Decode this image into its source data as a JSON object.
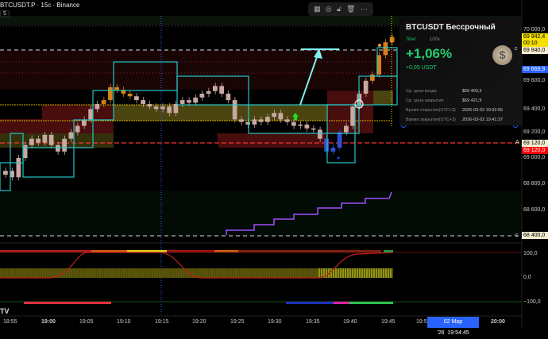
{
  "header": {
    "symbol_title": "BTCUSDT.P · 15с · Binance",
    "interval_badge": "5"
  },
  "toolbar": {
    "icons": [
      "layout-icon",
      "target-icon",
      "unlock-icon",
      "trash-icon",
      "more-icon"
    ]
  },
  "position_card": {
    "title": "BTCUSDT Бессрочный",
    "side": "Лонг",
    "leverage": "100x",
    "pnl_percent": "+1,06%",
    "pnl_usdt": "+0,05 USDT",
    "rows": [
      {
        "label": "Ср. цена входа",
        "value": "$69 400,3"
      },
      {
        "label": "Ср. цена закрытия",
        "value": "$69 421,9"
      },
      {
        "label": "Время открытия(UTC+3)",
        "value": "2026-03-02 19:32:55"
      },
      {
        "label": "Время закрытия(UTC+3)",
        "value": "2026-03-02 19:41:37"
      }
    ],
    "colors": {
      "profit": "#1fcf70"
    }
  },
  "price_axis": {
    "labels": [
      "70 000,0",
      "69 600,0",
      "69 400,0",
      "69 200,0",
      "69 000,0",
      "68 800,0",
      "68 600,0"
    ],
    "current_price": "69 942,4",
    "countdown": "00:10",
    "level_c_top": "69 840,0",
    "crosshair_price": "69 669,9",
    "level_a": "69 120,0",
    "level_a_red": "69 120,0",
    "level_c_bottom": "68 400,0",
    "line_marker_c": "c",
    "line_marker_a": "A"
  },
  "oscillator_axis": {
    "labels": [
      "100,0",
      "0,0",
      "−100,0"
    ]
  },
  "time_axis": {
    "labels": [
      "18:55",
      "19:00",
      "19:05",
      "19:10",
      "19:15",
      "19:20",
      "19:25",
      "19:30",
      "19:35",
      "19:40",
      "19:45",
      "19:50",
      "20:00"
    ],
    "crosshair_date": "02 Мар '26",
    "crosshair_time": "19:54:45"
  },
  "logo": "TV",
  "colors": {
    "up": "#c8a8a0",
    "box": "#26c6c6",
    "band_red": "#5a1010",
    "band_olive": "#4a4410",
    "accent_blue": "#2962ff",
    "current_price": "#f5e000"
  },
  "chart_data": {
    "type": "candlestick",
    "closes": [
      68900,
      68850,
      69000,
      69100,
      69150,
      69120,
      69180,
      69100,
      69050,
      69150,
      69200,
      69250,
      69300,
      69380,
      69420,
      69450,
      69550,
      69530,
      69500,
      69480,
      69450,
      69420,
      69400,
      69380,
      69400,
      69350,
      69420,
      69450,
      69430,
      69470,
      69500,
      69520,
      69560,
      69500,
      69450,
      69300,
      69280,
      69260,
      69300,
      69280,
      69320,
      69350,
      69300,
      69280,
      69250,
      69260,
      69230,
      69220,
      69150,
      69050,
      69080,
      69200,
      69250,
      69400,
      69500,
      69600,
      69650,
      69800,
      69900,
      69942
    ]
  }
}
